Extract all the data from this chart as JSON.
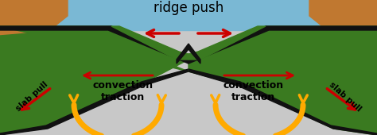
{
  "bg_color": "#c8c8c8",
  "ocean_color": "#7ab8d4",
  "plate_green_dark": "#3a7a20",
  "plate_green_light": "#5a9a30",
  "plate_dark_edge": "#111111",
  "ocean_brown": "#c07830",
  "ocean_brown_dark": "#a06020",
  "arrow_red": "#cc0000",
  "arrow_yellow": "#ffaa00",
  "title": "ridge push",
  "label_slab_pull": "slab pull",
  "label_convection": "convection\ntraction",
  "figsize": [
    4.74,
    1.7
  ],
  "dpi": 100
}
